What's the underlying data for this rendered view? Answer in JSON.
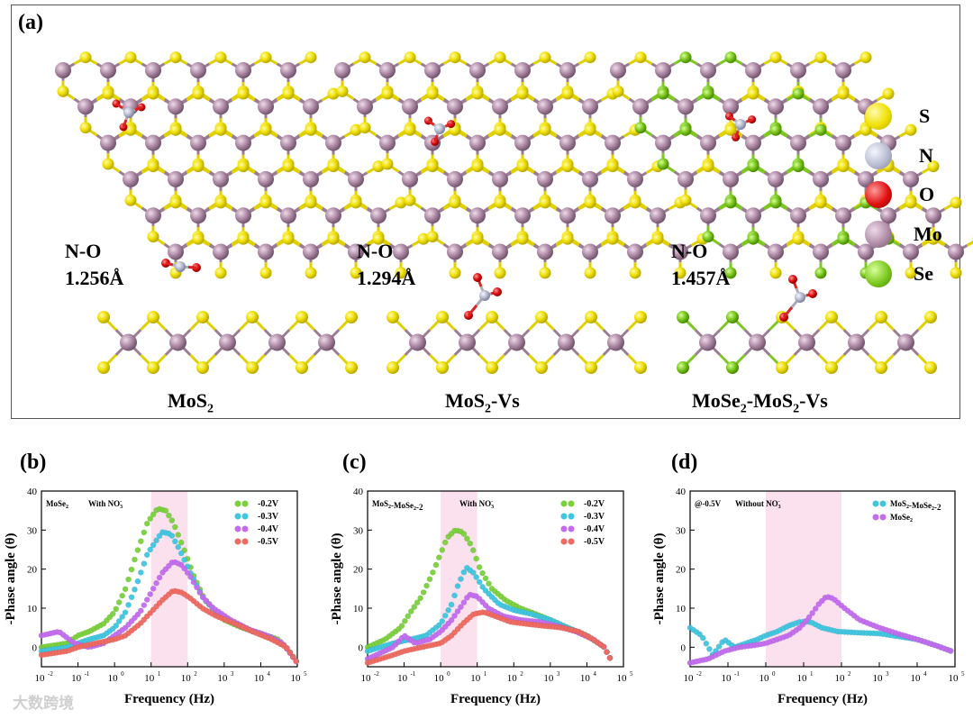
{
  "panel_a": {
    "label": "(a)",
    "structures": [
      {
        "bond_title": "N-O",
        "bond_length": "1.256Å",
        "name": "MoS",
        "sub": "2",
        "suffix": ""
      },
      {
        "bond_title": "N-O",
        "bond_length": "1.294Å",
        "name": "MoS",
        "sub": "2",
        "suffix": "-Vs"
      },
      {
        "bond_title": "N-O",
        "bond_length": "1.457Å",
        "name": "MoSe",
        "sub": "2",
        "suffix": "-MoS",
        "sub2": "2",
        "suffix2": "-Vs"
      }
    ],
    "legend": [
      {
        "label": "S",
        "color": "#f0e000"
      },
      {
        "label": "N",
        "color": "#b8bcd0"
      },
      {
        "label": "O",
        "color": "#e01010"
      },
      {
        "label": "Mo",
        "color": "#b08ca8"
      },
      {
        "label": "Se",
        "color": "#7cc820"
      }
    ]
  },
  "chart_data": [
    {
      "type": "scatter",
      "panel_label": "(b)",
      "annotation_sample": "MoSe",
      "annotation_sample_sub": "2",
      "annotation_cond": "With NO",
      "annotation_cond_sub": "3",
      "annotation_cond_sup": "-",
      "xlabel": "Frequency (Hz)",
      "ylabel": "-Phase angle (θ)",
      "xscale": "log",
      "xlim": [
        0.01,
        100000
      ],
      "ylim": [
        -5,
        40
      ],
      "xticks": [
        "10",
        "10",
        "10",
        "10",
        "10",
        "10",
        "10",
        "10"
      ],
      "xtick_exponents": [
        "-2",
        "-1",
        "0",
        "1",
        "2",
        "3",
        "4",
        "5"
      ],
      "yticks": [
        "0",
        "10",
        "20",
        "30",
        "40"
      ],
      "highlight_band": [
        10,
        100
      ],
      "series": [
        {
          "name": "-0.2V",
          "color": "#7ad13c",
          "points": [
            [
              0.01,
              0
            ],
            [
              0.05,
              1
            ],
            [
              0.1,
              3
            ],
            [
              0.2,
              4
            ],
            [
              0.5,
              6
            ],
            [
              1,
              9
            ],
            [
              2,
              15
            ],
            [
              4,
              24
            ],
            [
              8,
              32
            ],
            [
              15,
              35.5
            ],
            [
              25,
              35
            ],
            [
              40,
              32
            ],
            [
              80,
              25
            ],
            [
              150,
              18
            ],
            [
              300,
              12
            ],
            [
              1000,
              7
            ],
            [
              3000,
              5
            ],
            [
              10000,
              3.5
            ],
            [
              30000,
              2
            ],
            [
              60000,
              -1
            ],
            [
              100000,
              -4
            ]
          ]
        },
        {
          "name": "-0.3V",
          "color": "#3fc6e0",
          "points": [
            [
              0.01,
              -1
            ],
            [
              0.05,
              0
            ],
            [
              0.1,
              1
            ],
            [
              0.2,
              2
            ],
            [
              0.5,
              3
            ],
            [
              1,
              5
            ],
            [
              2,
              9
            ],
            [
              4,
              16
            ],
            [
              8,
              24
            ],
            [
              20,
              29.5
            ],
            [
              35,
              29
            ],
            [
              60,
              25
            ],
            [
              120,
              19
            ],
            [
              250,
              13
            ],
            [
              600,
              9
            ],
            [
              2000,
              6
            ],
            [
              6000,
              4
            ],
            [
              20000,
              2.5
            ],
            [
              50000,
              0
            ],
            [
              100000,
              -4
            ]
          ]
        },
        {
          "name": "-0.4V",
          "color": "#c46cf0",
          "points": [
            [
              0.01,
              3
            ],
            [
              0.03,
              4
            ],
            [
              0.08,
              1
            ],
            [
              0.2,
              0
            ],
            [
              0.5,
              1
            ],
            [
              1,
              3
            ],
            [
              2,
              5
            ],
            [
              5,
              9
            ],
            [
              10,
              14
            ],
            [
              20,
              19
            ],
            [
              40,
              22
            ],
            [
              70,
              21
            ],
            [
              120,
              18
            ],
            [
              250,
              13
            ],
            [
              500,
              10
            ],
            [
              1500,
              7
            ],
            [
              5000,
              4.5
            ],
            [
              15000,
              3
            ],
            [
              40000,
              1
            ],
            [
              100000,
              -4
            ]
          ]
        },
        {
          "name": "-0.5V",
          "color": "#f06a60",
          "points": [
            [
              0.01,
              -2
            ],
            [
              0.05,
              -1
            ],
            [
              0.1,
              0
            ],
            [
              0.3,
              1
            ],
            [
              1,
              2
            ],
            [
              2,
              3
            ],
            [
              5,
              6
            ],
            [
              10,
              9
            ],
            [
              20,
              12
            ],
            [
              40,
              14.5
            ],
            [
              70,
              14
            ],
            [
              120,
              12.5
            ],
            [
              250,
              10
            ],
            [
              600,
              8
            ],
            [
              2000,
              6
            ],
            [
              6000,
              4
            ],
            [
              20000,
              2
            ],
            [
              50000,
              0
            ],
            [
              100000,
              -4
            ]
          ]
        }
      ]
    },
    {
      "type": "scatter",
      "panel_label": "(c)",
      "annotation_sample": "MoS",
      "annotation_sample_sub": "2",
      "annotation_sample_mid": "-MoSe",
      "annotation_sample_sub2": "2",
      "annotation_sample_end": "-2",
      "annotation_cond": "With NO",
      "annotation_cond_sub": "3",
      "annotation_cond_sup": "-",
      "xlabel": "Frequency (Hz)",
      "ylabel": "-Phase angle (θ)",
      "xscale": "log",
      "xlim": [
        0.01,
        100000
      ],
      "ylim": [
        -5,
        40
      ],
      "xticks": [
        "10",
        "10",
        "10",
        "10",
        "10",
        "10",
        "10",
        "10"
      ],
      "xtick_exponents": [
        "-2",
        "-1",
        "0",
        "1",
        "2",
        "3",
        "4",
        "5"
      ],
      "yticks": [
        "0",
        "10",
        "20",
        "30",
        "40"
      ],
      "highlight_band": [
        1,
        10
      ],
      "series": [
        {
          "name": "-0.2V",
          "color": "#7ad13c",
          "points": [
            [
              0.01,
              0
            ],
            [
              0.03,
              2
            ],
            [
              0.08,
              5
            ],
            [
              0.15,
              9
            ],
            [
              0.3,
              13
            ],
            [
              0.6,
              19
            ],
            [
              1,
              24
            ],
            [
              1.5,
              28
            ],
            [
              2.5,
              30
            ],
            [
              4,
              29.5
            ],
            [
              7,
              26
            ],
            [
              12,
              20
            ],
            [
              25,
              15
            ],
            [
              60,
              12
            ],
            [
              150,
              10
            ],
            [
              400,
              8.5
            ],
            [
              1000,
              7
            ],
            [
              3000,
              5
            ],
            [
              10000,
              3
            ],
            [
              30000,
              0
            ],
            [
              50000,
              -4
            ]
          ]
        },
        {
          "name": "-0.3V",
          "color": "#3fc6e0",
          "points": [
            [
              0.01,
              -1
            ],
            [
              0.05,
              1
            ],
            [
              0.15,
              2
            ],
            [
              0.4,
              3
            ],
            [
              1,
              6
            ],
            [
              2,
              11
            ],
            [
              3,
              16
            ],
            [
              5,
              20.5
            ],
            [
              8,
              19
            ],
            [
              15,
              15
            ],
            [
              40,
              11
            ],
            [
              100,
              9.5
            ],
            [
              300,
              8.5
            ],
            [
              1000,
              7
            ],
            [
              3000,
              5
            ],
            [
              10000,
              3
            ],
            [
              30000,
              0
            ],
            [
              50000,
              -4
            ]
          ]
        },
        {
          "name": "-0.4V",
          "color": "#c46cf0",
          "points": [
            [
              0.01,
              -3
            ],
            [
              0.05,
              0
            ],
            [
              0.1,
              3
            ],
            [
              0.2,
              1
            ],
            [
              0.5,
              2
            ],
            [
              1,
              4
            ],
            [
              2,
              7
            ],
            [
              4,
              11
            ],
            [
              6,
              13.5
            ],
            [
              10,
              13
            ],
            [
              20,
              10
            ],
            [
              50,
              8
            ],
            [
              150,
              7
            ],
            [
              500,
              6.5
            ],
            [
              1500,
              5.5
            ],
            [
              5000,
              4
            ],
            [
              15000,
              2
            ],
            [
              30000,
              0
            ],
            [
              50000,
              -4
            ]
          ]
        },
        {
          "name": "-0.5V",
          "color": "#f06a60",
          "points": [
            [
              0.01,
              -4
            ],
            [
              0.05,
              -2
            ],
            [
              0.1,
              -1
            ],
            [
              0.3,
              0
            ],
            [
              1,
              1
            ],
            [
              2,
              3
            ],
            [
              4,
              6
            ],
            [
              8,
              8.5
            ],
            [
              15,
              9
            ],
            [
              30,
              8
            ],
            [
              80,
              6.5
            ],
            [
              200,
              6
            ],
            [
              600,
              5.5
            ],
            [
              2000,
              5
            ],
            [
              6000,
              4
            ],
            [
              15000,
              2
            ],
            [
              30000,
              0
            ],
            [
              50000,
              -4
            ]
          ]
        }
      ]
    },
    {
      "type": "scatter",
      "panel_label": "(d)",
      "annotation_sample": "@-0.5V",
      "annotation_cond": "Without NO",
      "annotation_cond_sub": "3",
      "annotation_cond_sup": "-",
      "xlabel": "Frequency (Hz)",
      "ylabel": "-Phase angle (θ)",
      "xscale": "log",
      "xlim": [
        0.01,
        100000
      ],
      "ylim": [
        -5,
        40
      ],
      "xticks": [
        "10",
        "10",
        "10",
        "10",
        "10",
        "10",
        "10",
        "10"
      ],
      "xtick_exponents": [
        "-2",
        "-1",
        "0",
        "1",
        "2",
        "3",
        "4",
        "5"
      ],
      "yticks": [
        "0",
        "10",
        "20",
        "30",
        "40"
      ],
      "highlight_band": [
        1,
        100
      ],
      "legend_names": [
        {
          "main": "MoS",
          "sub": "2",
          "mid": "-MoSe",
          "sub2": "2",
          "end": "-2"
        },
        {
          "main": "MoSe",
          "sub": "2",
          "mid": "",
          "sub2": "",
          "end": ""
        }
      ],
      "series": [
        {
          "name": "MoS2-MoSe2-2",
          "color": "#3fc6e0",
          "points": [
            [
              0.01,
              5
            ],
            [
              0.02,
              3
            ],
            [
              0.04,
              -2
            ],
            [
              0.08,
              2
            ],
            [
              0.15,
              0
            ],
            [
              0.3,
              1
            ],
            [
              0.6,
              2
            ],
            [
              1,
              3
            ],
            [
              2,
              4
            ],
            [
              4,
              5.5
            ],
            [
              8,
              6.5
            ],
            [
              15,
              6.5
            ],
            [
              30,
              5
            ],
            [
              80,
              4
            ],
            [
              300,
              3.7
            ],
            [
              1000,
              3.5
            ],
            [
              3000,
              2.8
            ],
            [
              10000,
              2
            ],
            [
              30000,
              0.5
            ],
            [
              80000,
              -1
            ]
          ]
        },
        {
          "name": "MoSe2",
          "color": "#c46cf0",
          "points": [
            [
              0.01,
              -4
            ],
            [
              0.03,
              -3
            ],
            [
              0.08,
              -1
            ],
            [
              0.2,
              0
            ],
            [
              0.5,
              0.5
            ],
            [
              1,
              1
            ],
            [
              2,
              2
            ],
            [
              4,
              3
            ],
            [
              8,
              5
            ],
            [
              15,
              8
            ],
            [
              25,
              11
            ],
            [
              40,
              13
            ],
            [
              60,
              12.5
            ],
            [
              120,
              10
            ],
            [
              300,
              7
            ],
            [
              1000,
              5
            ],
            [
              3000,
              3.5
            ],
            [
              10000,
              2
            ],
            [
              30000,
              0.5
            ],
            [
              80000,
              -1
            ]
          ]
        }
      ]
    }
  ],
  "watermark": "大数跨境"
}
